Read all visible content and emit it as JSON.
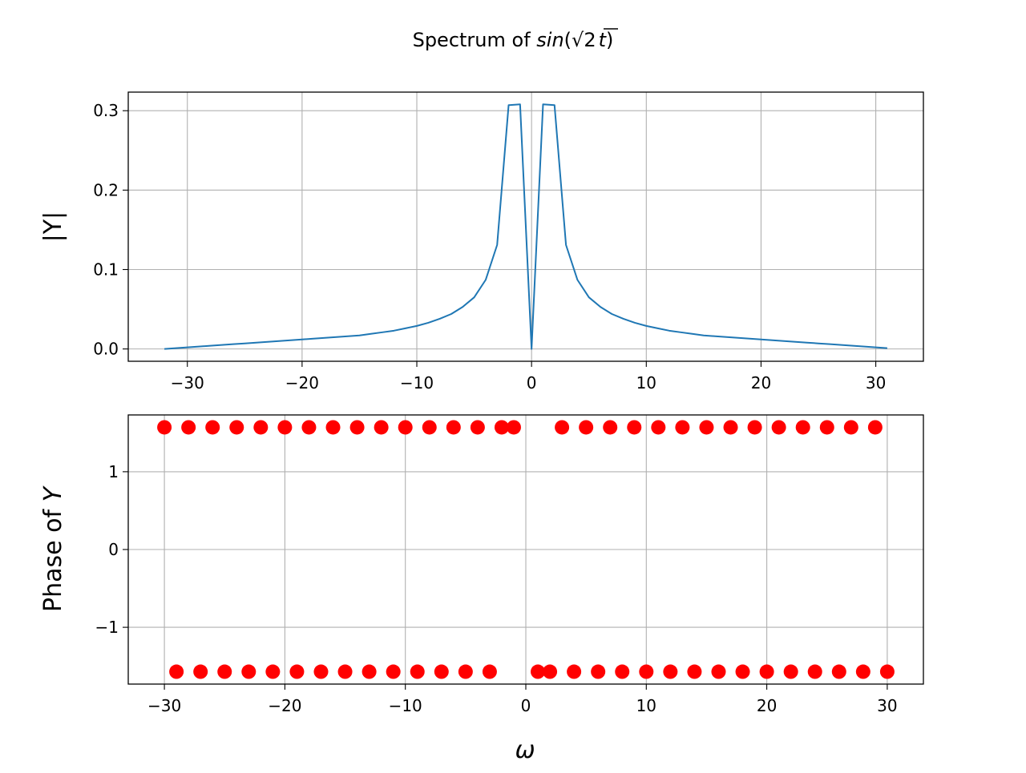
{
  "figure": {
    "title_prefix": "Spectrum of ",
    "title_math_func": "sin",
    "title_math_open": "(",
    "title_math_radicand": "2",
    "title_math_var": "t",
    "title_math_close": ")"
  },
  "colors": {
    "line": "#1f77b4",
    "points": "#ff0000",
    "grid": "#b0b0b0",
    "axes": "#000000"
  },
  "chart_data": [
    {
      "type": "line",
      "ylabel": "|Y|",
      "xlabel": "",
      "grid": true,
      "xlim": [
        -35.15,
        34.15
      ],
      "ylim": [
        -0.0155,
        0.3234
      ],
      "xticks": [
        -30,
        -20,
        -10,
        0,
        10,
        20,
        30
      ],
      "xtick_labels": [
        "−30",
        "−20",
        "−10",
        "0",
        "10",
        "20",
        "30"
      ],
      "yticks": [
        0.0,
        0.1,
        0.2,
        0.3
      ],
      "ytick_labels": [
        "0.0",
        "0.1",
        "0.2",
        "0.3"
      ],
      "series": [
        {
          "x": [
            -32,
            -31,
            -30,
            -29,
            -28,
            -27,
            -26,
            -25,
            -24,
            -23,
            -22,
            -21,
            -20,
            -19,
            -18,
            -17,
            -16,
            -15,
            -14,
            -13,
            -12,
            -11,
            -10,
            -9,
            -8,
            -7,
            -6,
            -5,
            -4,
            -3,
            -2,
            -1,
            0,
            1,
            2,
            3,
            4,
            5,
            6,
            7,
            8,
            9,
            10,
            11,
            12,
            13,
            14,
            15,
            16,
            17,
            18,
            19,
            20,
            21,
            22,
            23,
            24,
            25,
            26,
            27,
            28,
            29,
            30,
            31
          ],
          "y": [
            0.0,
            0.001,
            0.002,
            0.003,
            0.004,
            0.005,
            0.006,
            0.007,
            0.008,
            0.009,
            0.01,
            0.011,
            0.012,
            0.013,
            0.014,
            0.015,
            0.016,
            0.017,
            0.019,
            0.021,
            0.023,
            0.026,
            0.029,
            0.033,
            0.038,
            0.044,
            0.053,
            0.065,
            0.087,
            0.131,
            0.307,
            0.308,
            0.0,
            0.308,
            0.307,
            0.131,
            0.087,
            0.065,
            0.053,
            0.044,
            0.038,
            0.033,
            0.029,
            0.026,
            0.023,
            0.021,
            0.019,
            0.017,
            0.016,
            0.015,
            0.014,
            0.013,
            0.012,
            0.011,
            0.01,
            0.009,
            0.008,
            0.007,
            0.006,
            0.005,
            0.004,
            0.003,
            0.002,
            0.001
          ]
        }
      ]
    },
    {
      "type": "scatter",
      "ylabel_prefix": "Phase of ",
      "ylabel_var": "Y",
      "xlabel": "ω",
      "grid": true,
      "xlim": [
        -33.0,
        33.0
      ],
      "ylim": [
        -1.73,
        1.73
      ],
      "xticks": [
        -30,
        -20,
        -10,
        0,
        10,
        20,
        30
      ],
      "xtick_labels": [
        "−30",
        "−20",
        "−10",
        "0",
        "10",
        "20",
        "30"
      ],
      "yticks": [
        -1,
        0,
        1
      ],
      "ytick_labels": [
        "−1",
        "0",
        "1"
      ],
      "series": [
        {
          "points": [
            [
              -30,
              1.5708
            ],
            [
              -28,
              1.5708
            ],
            [
              -26,
              1.5708
            ],
            [
              -24,
              1.5708
            ],
            [
              -22,
              1.5708
            ],
            [
              -20,
              1.5708
            ],
            [
              -18,
              1.5708
            ],
            [
              -16,
              1.5708
            ],
            [
              -14,
              1.5708
            ],
            [
              -12,
              1.5708
            ],
            [
              -10,
              1.5708
            ],
            [
              -8,
              1.5708
            ],
            [
              -6,
              1.5708
            ],
            [
              -4,
              1.5708
            ],
            [
              -2,
              1.5708
            ],
            [
              -1,
              1.5708
            ],
            [
              3,
              1.5708
            ],
            [
              5,
              1.5708
            ],
            [
              7,
              1.5708
            ],
            [
              9,
              1.5708
            ],
            [
              11,
              1.5708
            ],
            [
              13,
              1.5708
            ],
            [
              15,
              1.5708
            ],
            [
              17,
              1.5708
            ],
            [
              19,
              1.5708
            ],
            [
              21,
              1.5708
            ],
            [
              23,
              1.5708
            ],
            [
              25,
              1.5708
            ],
            [
              27,
              1.5708
            ],
            [
              29,
              1.5708
            ],
            [
              -29,
              -1.5708
            ],
            [
              -27,
              -1.5708
            ],
            [
              -25,
              -1.5708
            ],
            [
              -23,
              -1.5708
            ],
            [
              -21,
              -1.5708
            ],
            [
              -19,
              -1.5708
            ],
            [
              -17,
              -1.5708
            ],
            [
              -15,
              -1.5708
            ],
            [
              -13,
              -1.5708
            ],
            [
              -11,
              -1.5708
            ],
            [
              -9,
              -1.5708
            ],
            [
              -7,
              -1.5708
            ],
            [
              -5,
              -1.5708
            ],
            [
              -3,
              -1.5708
            ],
            [
              1,
              -1.5708
            ],
            [
              2,
              -1.5708
            ],
            [
              4,
              -1.5708
            ],
            [
              6,
              -1.5708
            ],
            [
              8,
              -1.5708
            ],
            [
              10,
              -1.5708
            ],
            [
              12,
              -1.5708
            ],
            [
              14,
              -1.5708
            ],
            [
              16,
              -1.5708
            ],
            [
              18,
              -1.5708
            ],
            [
              20,
              -1.5708
            ],
            [
              22,
              -1.5708
            ],
            [
              24,
              -1.5708
            ],
            [
              26,
              -1.5708
            ],
            [
              28,
              -1.5708
            ],
            [
              30,
              -1.5708
            ]
          ]
        }
      ]
    }
  ]
}
